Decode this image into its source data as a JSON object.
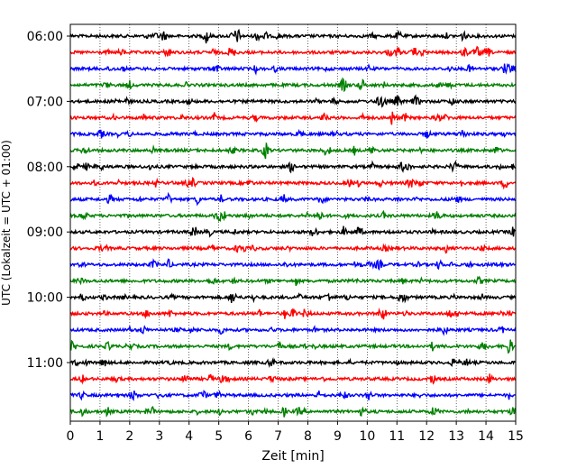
{
  "chart_data": {
    "type": "line",
    "title": "",
    "xlabel": "Zeit  [min]",
    "ylabel": "UTC (Lokalzeit = UTC + 01:00)",
    "xlim": [
      0,
      15
    ],
    "x_ticks": [
      "0",
      "1",
      "2",
      "3",
      "4",
      "5",
      "6",
      "7",
      "8",
      "9",
      "10",
      "11",
      "12",
      "13",
      "14",
      "15"
    ],
    "y_ticks": [
      "06:00",
      "07:00",
      "08:00",
      "09:00",
      "10:00",
      "11:00"
    ],
    "grid": "vertical dotted lines at each minute",
    "trace_interval_min": 15,
    "start_time": "06:00",
    "trace_count": 24,
    "trace_colors": [
      "#000000",
      "#ff0000",
      "#0000ff",
      "#008000"
    ]
  }
}
